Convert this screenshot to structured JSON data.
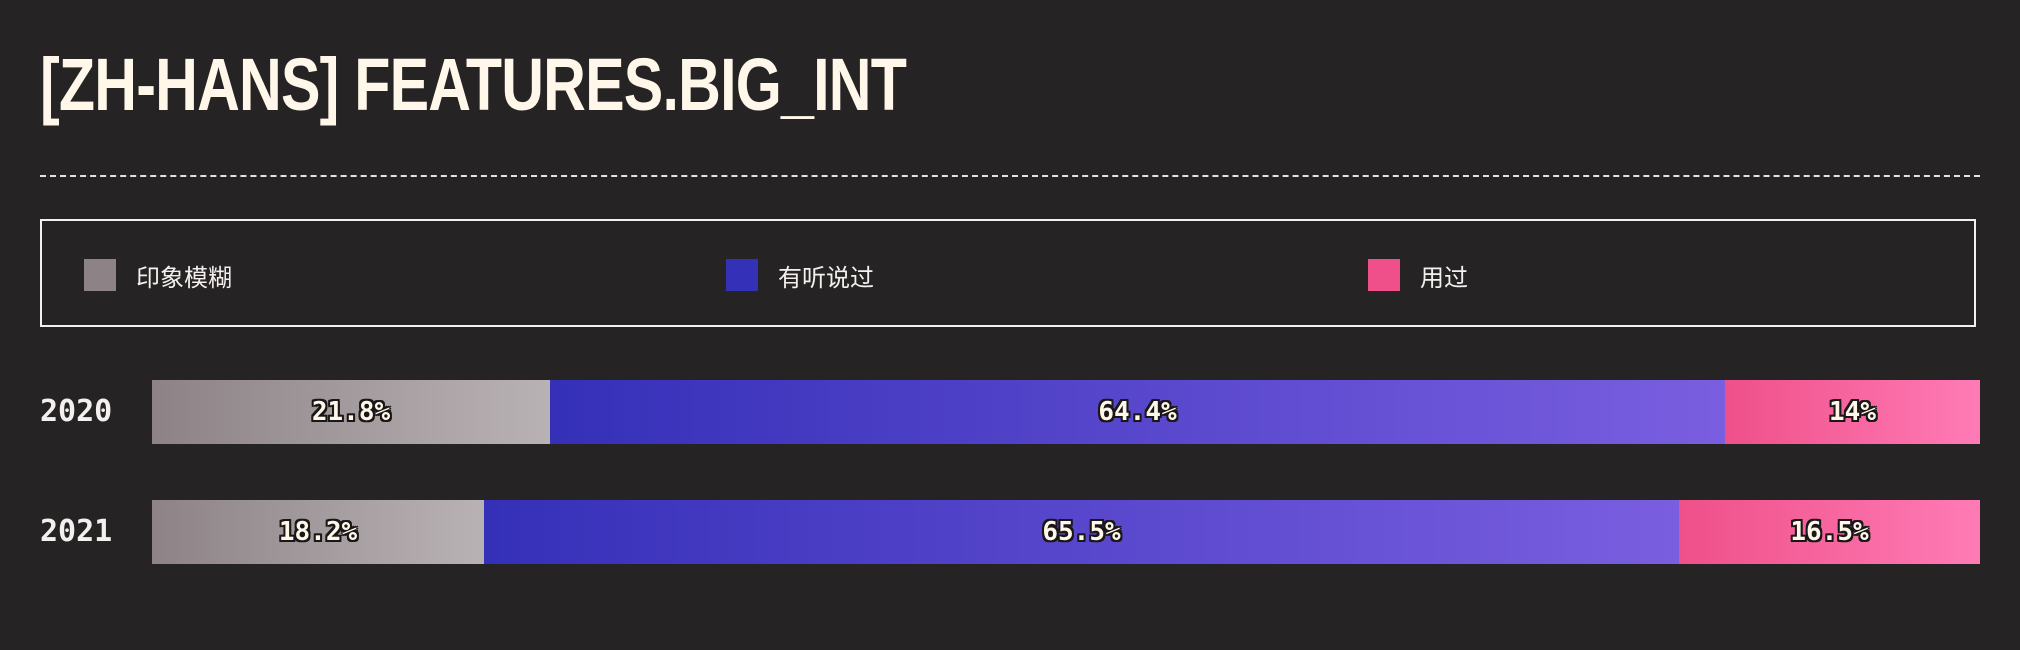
{
  "title": "[ZH-HANS] FEATURES.BIG_INT",
  "chart_data": {
    "type": "bar",
    "orientation": "horizontal",
    "stacked": true,
    "normalized": true,
    "title": "[ZH-HANS] FEATURES.BIG_INT",
    "categories": [
      "2020",
      "2021"
    ],
    "series": [
      {
        "name": "印象模糊",
        "values": [
          21.8,
          18.2
        ],
        "labels": [
          "21.8%",
          "18.2%"
        ],
        "color": "#8d8387",
        "color_end": "#b9b2b4"
      },
      {
        "name": "有听说过",
        "values": [
          64.4,
          65.5
        ],
        "labels": [
          "64.4%",
          "65.5%"
        ],
        "color": "#3530b8",
        "color_end": "#7a5ee0"
      },
      {
        "name": "用过",
        "values": [
          14,
          16.5
        ],
        "labels": [
          "14%",
          "16.5%"
        ],
        "color": "#ef5089",
        "color_end": "#ff7bb5"
      }
    ],
    "xlim": [
      0,
      100
    ],
    "legend": "top",
    "grid": false
  }
}
